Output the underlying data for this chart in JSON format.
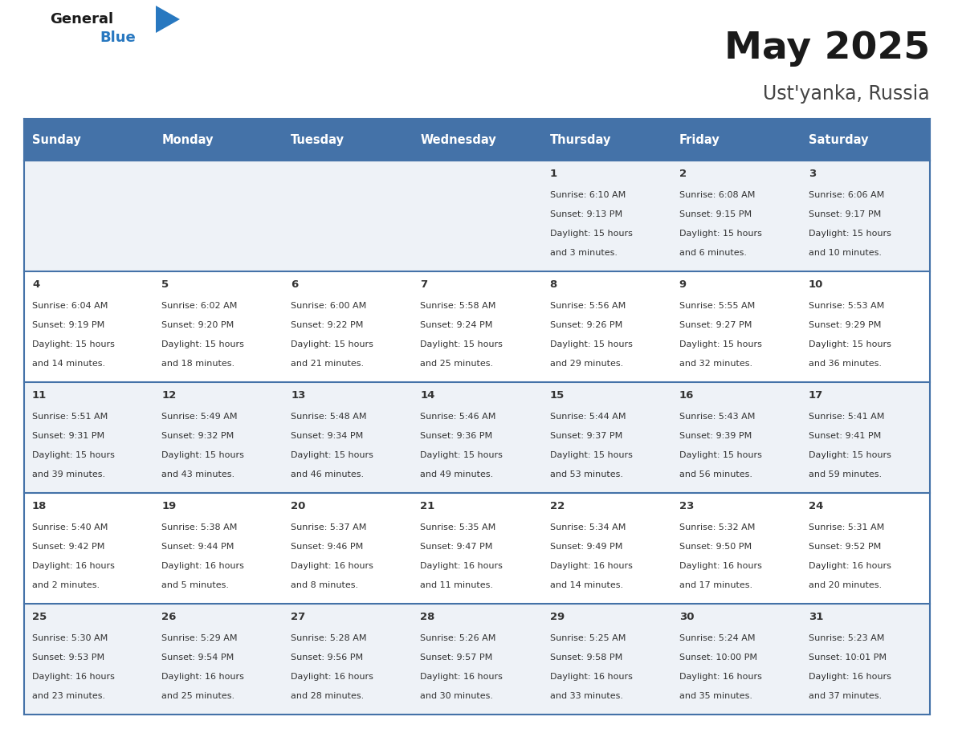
{
  "title": "May 2025",
  "subtitle": "Ust'yanka, Russia",
  "header_bg": "#4472a8",
  "header_text": "#ffffff",
  "row_bg_odd": "#eef2f7",
  "row_bg_even": "#ffffff",
  "cell_border": "#4472a8",
  "day_headers": [
    "Sunday",
    "Monday",
    "Tuesday",
    "Wednesday",
    "Thursday",
    "Friday",
    "Saturday"
  ],
  "days": [
    {
      "day": 1,
      "col": 4,
      "row": 0,
      "sunrise": "6:10 AM",
      "sunset": "9:13 PM",
      "hours": 15,
      "minutes": 3
    },
    {
      "day": 2,
      "col": 5,
      "row": 0,
      "sunrise": "6:08 AM",
      "sunset": "9:15 PM",
      "hours": 15,
      "minutes": 6
    },
    {
      "day": 3,
      "col": 6,
      "row": 0,
      "sunrise": "6:06 AM",
      "sunset": "9:17 PM",
      "hours": 15,
      "minutes": 10
    },
    {
      "day": 4,
      "col": 0,
      "row": 1,
      "sunrise": "6:04 AM",
      "sunset": "9:19 PM",
      "hours": 15,
      "minutes": 14
    },
    {
      "day": 5,
      "col": 1,
      "row": 1,
      "sunrise": "6:02 AM",
      "sunset": "9:20 PM",
      "hours": 15,
      "minutes": 18
    },
    {
      "day": 6,
      "col": 2,
      "row": 1,
      "sunrise": "6:00 AM",
      "sunset": "9:22 PM",
      "hours": 15,
      "minutes": 21
    },
    {
      "day": 7,
      "col": 3,
      "row": 1,
      "sunrise": "5:58 AM",
      "sunset": "9:24 PM",
      "hours": 15,
      "minutes": 25
    },
    {
      "day": 8,
      "col": 4,
      "row": 1,
      "sunrise": "5:56 AM",
      "sunset": "9:26 PM",
      "hours": 15,
      "minutes": 29
    },
    {
      "day": 9,
      "col": 5,
      "row": 1,
      "sunrise": "5:55 AM",
      "sunset": "9:27 PM",
      "hours": 15,
      "minutes": 32
    },
    {
      "day": 10,
      "col": 6,
      "row": 1,
      "sunrise": "5:53 AM",
      "sunset": "9:29 PM",
      "hours": 15,
      "minutes": 36
    },
    {
      "day": 11,
      "col": 0,
      "row": 2,
      "sunrise": "5:51 AM",
      "sunset": "9:31 PM",
      "hours": 15,
      "minutes": 39
    },
    {
      "day": 12,
      "col": 1,
      "row": 2,
      "sunrise": "5:49 AM",
      "sunset": "9:32 PM",
      "hours": 15,
      "minutes": 43
    },
    {
      "day": 13,
      "col": 2,
      "row": 2,
      "sunrise": "5:48 AM",
      "sunset": "9:34 PM",
      "hours": 15,
      "minutes": 46
    },
    {
      "day": 14,
      "col": 3,
      "row": 2,
      "sunrise": "5:46 AM",
      "sunset": "9:36 PM",
      "hours": 15,
      "minutes": 49
    },
    {
      "day": 15,
      "col": 4,
      "row": 2,
      "sunrise": "5:44 AM",
      "sunset": "9:37 PM",
      "hours": 15,
      "minutes": 53
    },
    {
      "day": 16,
      "col": 5,
      "row": 2,
      "sunrise": "5:43 AM",
      "sunset": "9:39 PM",
      "hours": 15,
      "minutes": 56
    },
    {
      "day": 17,
      "col": 6,
      "row": 2,
      "sunrise": "5:41 AM",
      "sunset": "9:41 PM",
      "hours": 15,
      "minutes": 59
    },
    {
      "day": 18,
      "col": 0,
      "row": 3,
      "sunrise": "5:40 AM",
      "sunset": "9:42 PM",
      "hours": 16,
      "minutes": 2
    },
    {
      "day": 19,
      "col": 1,
      "row": 3,
      "sunrise": "5:38 AM",
      "sunset": "9:44 PM",
      "hours": 16,
      "minutes": 5
    },
    {
      "day": 20,
      "col": 2,
      "row": 3,
      "sunrise": "5:37 AM",
      "sunset": "9:46 PM",
      "hours": 16,
      "minutes": 8
    },
    {
      "day": 21,
      "col": 3,
      "row": 3,
      "sunrise": "5:35 AM",
      "sunset": "9:47 PM",
      "hours": 16,
      "minutes": 11
    },
    {
      "day": 22,
      "col": 4,
      "row": 3,
      "sunrise": "5:34 AM",
      "sunset": "9:49 PM",
      "hours": 16,
      "minutes": 14
    },
    {
      "day": 23,
      "col": 5,
      "row": 3,
      "sunrise": "5:32 AM",
      "sunset": "9:50 PM",
      "hours": 16,
      "minutes": 17
    },
    {
      "day": 24,
      "col": 6,
      "row": 3,
      "sunrise": "5:31 AM",
      "sunset": "9:52 PM",
      "hours": 16,
      "minutes": 20
    },
    {
      "day": 25,
      "col": 0,
      "row": 4,
      "sunrise": "5:30 AM",
      "sunset": "9:53 PM",
      "hours": 16,
      "minutes": 23
    },
    {
      "day": 26,
      "col": 1,
      "row": 4,
      "sunrise": "5:29 AM",
      "sunset": "9:54 PM",
      "hours": 16,
      "minutes": 25
    },
    {
      "day": 27,
      "col": 2,
      "row": 4,
      "sunrise": "5:28 AM",
      "sunset": "9:56 PM",
      "hours": 16,
      "minutes": 28
    },
    {
      "day": 28,
      "col": 3,
      "row": 4,
      "sunrise": "5:26 AM",
      "sunset": "9:57 PM",
      "hours": 16,
      "minutes": 30
    },
    {
      "day": 29,
      "col": 4,
      "row": 4,
      "sunrise": "5:25 AM",
      "sunset": "9:58 PM",
      "hours": 16,
      "minutes": 33
    },
    {
      "day": 30,
      "col": 5,
      "row": 4,
      "sunrise": "5:24 AM",
      "sunset": "10:00 PM",
      "hours": 16,
      "minutes": 35
    },
    {
      "day": 31,
      "col": 6,
      "row": 4,
      "sunrise": "5:23 AM",
      "sunset": "10:01 PM",
      "hours": 16,
      "minutes": 37
    }
  ],
  "num_rows": 5,
  "num_cols": 7,
  "fig_width": 11.88,
  "fig_height": 9.18,
  "dpi": 100
}
